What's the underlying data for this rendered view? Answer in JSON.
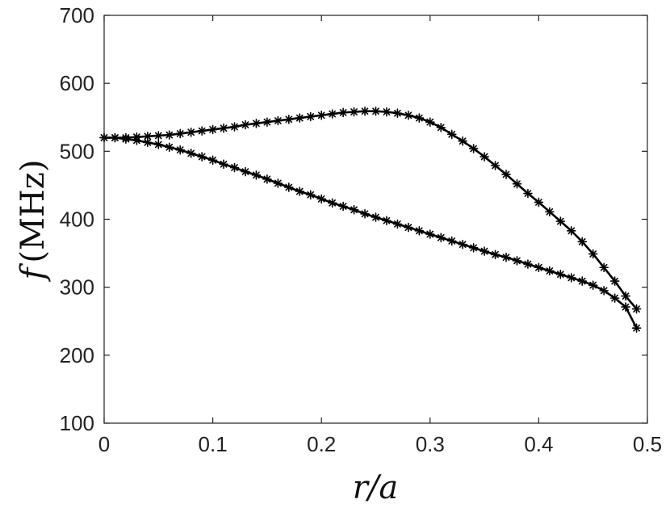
{
  "chart_data": {
    "type": "line",
    "title": "",
    "xlabel": "r/a",
    "ylabel": "f (MHz)",
    "ylabel_parts": {
      "variable": "f",
      "unit": "(MHz)"
    },
    "xlim": [
      0,
      0.5
    ],
    "ylim": [
      100,
      700
    ],
    "xticks": [
      0,
      0.1,
      0.2,
      0.3,
      0.4,
      0.5
    ],
    "xtick_labels": [
      "0",
      "0.1",
      "0.2",
      "0.3",
      "0.4",
      "0.5"
    ],
    "yticks": [
      100,
      200,
      300,
      400,
      500,
      600,
      700
    ],
    "ytick_labels": [
      "100",
      "200",
      "300",
      "400",
      "500",
      "600",
      "700"
    ],
    "grid": false,
    "legend": "none",
    "marker": "asterisk",
    "line_color": "#000000",
    "series": [
      {
        "x": [
          0,
          0.01,
          0.02,
          0.03,
          0.04,
          0.05,
          0.06,
          0.07,
          0.08,
          0.09,
          0.1,
          0.11,
          0.12,
          0.13,
          0.14,
          0.15,
          0.16,
          0.17,
          0.18,
          0.19,
          0.2,
          0.21,
          0.22,
          0.23,
          0.24,
          0.25,
          0.26,
          0.27,
          0.28,
          0.29,
          0.3,
          0.31,
          0.32,
          0.33,
          0.34,
          0.35,
          0.36,
          0.37,
          0.38,
          0.39,
          0.4,
          0.41,
          0.42,
          0.43,
          0.44,
          0.45,
          0.46,
          0.47,
          0.48,
          0.49
        ],
        "values": [
          520,
          520,
          520,
          521,
          522,
          523,
          524,
          526,
          528,
          530,
          532,
          534,
          536,
          539,
          541,
          543,
          545,
          547,
          549,
          551,
          553,
          555,
          557,
          558,
          559,
          559,
          558,
          556,
          553,
          549,
          543,
          535,
          525,
          515,
          504,
          492,
          479,
          466,
          452,
          438,
          425,
          411,
          397,
          383,
          367,
          349,
          329,
          309,
          287,
          268
        ]
      },
      {
        "x": [
          0,
          0.01,
          0.02,
          0.03,
          0.04,
          0.05,
          0.06,
          0.07,
          0.08,
          0.09,
          0.1,
          0.11,
          0.12,
          0.13,
          0.14,
          0.15,
          0.16,
          0.17,
          0.18,
          0.19,
          0.2,
          0.21,
          0.22,
          0.23,
          0.24,
          0.25,
          0.26,
          0.27,
          0.28,
          0.29,
          0.3,
          0.31,
          0.32,
          0.33,
          0.34,
          0.35,
          0.36,
          0.37,
          0.38,
          0.39,
          0.4,
          0.41,
          0.42,
          0.43,
          0.44,
          0.45,
          0.46,
          0.47,
          0.48,
          0.49
        ],
        "values": [
          520,
          520,
          518,
          516,
          513,
          510,
          506,
          502,
          497,
          492,
          487,
          481,
          476,
          470,
          465,
          459,
          453,
          447,
          441,
          436,
          430,
          424,
          419,
          414,
          408,
          403,
          398,
          393,
          388,
          383,
          378,
          373,
          368,
          363,
          358,
          353,
          348,
          344,
          339,
          334,
          329,
          324,
          319,
          314,
          309,
          303,
          295,
          284,
          271,
          240
        ]
      }
    ]
  }
}
